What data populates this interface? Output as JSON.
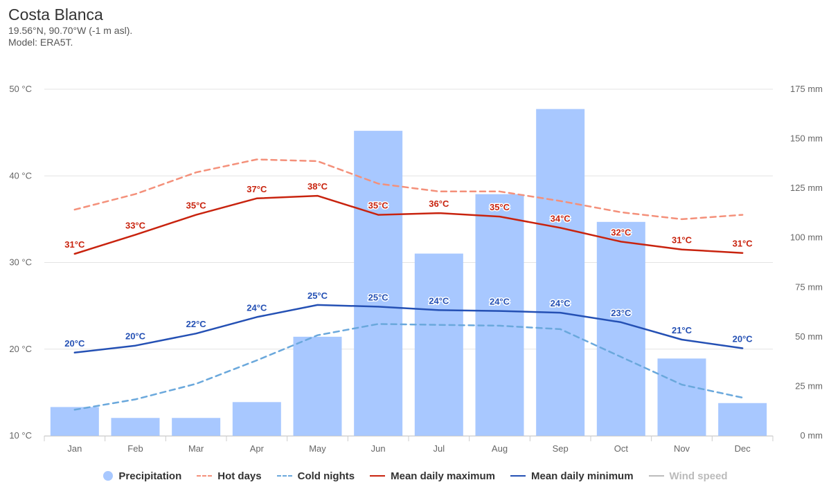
{
  "header": {
    "title": "Costa Blanca",
    "subtitle_coords": "19.56°N, 90.70°W (-1 m asl).",
    "subtitle_model": "Model: ERA5T."
  },
  "legend": [
    {
      "label": "Precipitation",
      "symbol": "circle",
      "color": "#a8c8ff",
      "enabled": true
    },
    {
      "label": "Hot days",
      "symbol": "dash",
      "color": "#f4907a",
      "enabled": true
    },
    {
      "label": "Cold nights",
      "symbol": "dash",
      "color": "#6aa8dc",
      "enabled": true
    },
    {
      "label": "Mean daily maximum",
      "symbol": "line",
      "color": "#c8230e",
      "enabled": true
    },
    {
      "label": "Mean daily minimum",
      "symbol": "line",
      "color": "#2450b4",
      "enabled": true
    },
    {
      "label": "Wind speed",
      "symbol": "line",
      "color": "#aaaaaa",
      "enabled": false
    }
  ],
  "chart_data": {
    "type": "bar",
    "categories": [
      "Jan",
      "Feb",
      "Mar",
      "Apr",
      "May",
      "Jun",
      "Jul",
      "Aug",
      "Sep",
      "Oct",
      "Nov",
      "Dec"
    ],
    "y_left": {
      "ticks": [
        "10 °C",
        "20 °C",
        "30 °C",
        "40 °C",
        "50 °C"
      ],
      "range": [
        10,
        50
      ],
      "unit": "°C"
    },
    "y_right": {
      "ticks": [
        "0 mm",
        "25 mm",
        "50 mm",
        "75 mm",
        "100 mm",
        "125 mm",
        "150 mm",
        "175 mm"
      ],
      "range": [
        0,
        175
      ],
      "unit": "mm"
    },
    "grid": true,
    "legend_position": "bottom",
    "series": [
      {
        "name": "Precipitation",
        "type": "bar",
        "axis": "right",
        "color": "#a8c8ff",
        "values": [
          14.5,
          9,
          9,
          17,
          50,
          154,
          92,
          122,
          165,
          108,
          39,
          16.5
        ]
      },
      {
        "name": "Hot days",
        "type": "line",
        "style": "dashed",
        "axis": "left",
        "color": "#f4907a",
        "values": [
          36.1,
          37.9,
          40.4,
          41.9,
          41.7,
          39.1,
          38.2,
          38.2,
          37.1,
          35.8,
          35.0,
          35.5
        ]
      },
      {
        "name": "Cold nights",
        "type": "line",
        "style": "dashed",
        "axis": "left",
        "color": "#6aa8dc",
        "values": [
          13.0,
          14.2,
          16.0,
          18.7,
          21.6,
          22.9,
          22.8,
          22.7,
          22.3,
          19.1,
          15.9,
          14.4
        ]
      },
      {
        "name": "Mean daily maximum",
        "type": "line",
        "style": "solid",
        "axis": "left",
        "color": "#c8230e",
        "values": [
          31.0,
          33.2,
          35.5,
          37.4,
          37.7,
          35.5,
          35.7,
          35.3,
          34.0,
          32.4,
          31.5,
          31.1
        ],
        "labels": [
          "31°C",
          "33°C",
          "35°C",
          "37°C",
          "38°C",
          "35°C",
          "36°C",
          "35°C",
          "34°C",
          "32°C",
          "31°C",
          "31°C"
        ]
      },
      {
        "name": "Mean daily minimum",
        "type": "line",
        "style": "solid",
        "axis": "left",
        "color": "#2450b4",
        "values": [
          19.6,
          20.4,
          21.8,
          23.7,
          25.1,
          24.9,
          24.5,
          24.4,
          24.2,
          23.1,
          21.1,
          20.1
        ],
        "labels": [
          "20°C",
          "20°C",
          "22°C",
          "24°C",
          "25°C",
          "25°C",
          "24°C",
          "24°C",
          "24°C",
          "23°C",
          "21°C",
          "20°C"
        ]
      }
    ]
  }
}
